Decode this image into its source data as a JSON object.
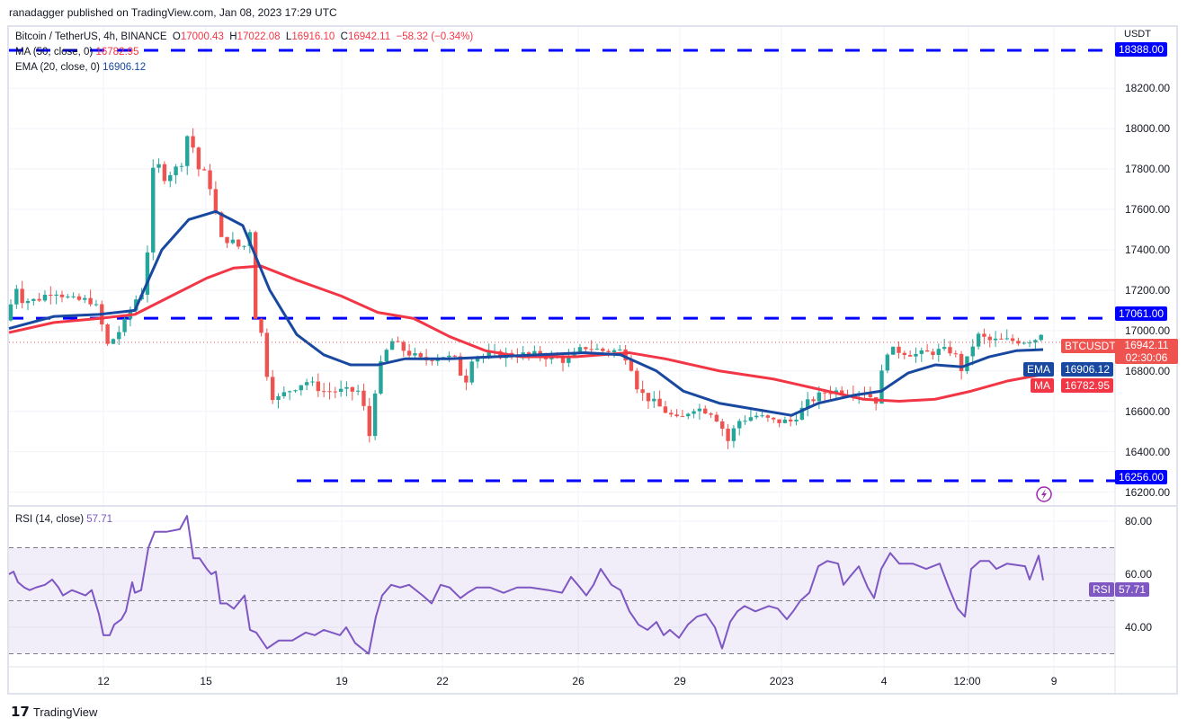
{
  "published": "ranadagger published on TradingView.com, Jan 08, 2023 17:29 UTC",
  "legend": {
    "symbol": "Bitcoin / TetherUS, 4h, BINANCE",
    "o_label": "O",
    "o": "17000.43",
    "h_label": "H",
    "h": "17022.08",
    "l_label": "L",
    "l": "16916.10",
    "c_label": "C",
    "c": "16942.11",
    "change": "−58.32 (−0.34%)",
    "ma_label": "MA (50, close, 0)",
    "ma_value": "16782.95",
    "ema_label": "EMA (20, close, 0)",
    "ema_value": "16906.12",
    "rsi_label": "RSI (14, close)",
    "rsi_value": "57.71"
  },
  "price_axis": {
    "currency": "USDT",
    "ticks": [
      "18200.00",
      "18000.00",
      "17800.00",
      "17600.00",
      "17400.00",
      "17200.00",
      "17000.00",
      "16800.00",
      "16600.00",
      "16400.00",
      "16200.00"
    ]
  },
  "rsi_axis": {
    "ticks": [
      "80.00",
      "60.00",
      "40.00"
    ]
  },
  "time_axis": [
    "12",
    "15",
    "19",
    "22",
    "26",
    "29",
    "2023",
    "4",
    "12:00",
    "9"
  ],
  "tags": {
    "level_high": "18388.00",
    "level_mid": "17061.00",
    "level_low": "16256.00",
    "symbol": "BTCUSDT",
    "price": "16942.11",
    "countdown": "02:30:06",
    "ema_label": "EMA",
    "ema": "16906.12",
    "ma_label": "MA",
    "ma": "16782.95",
    "rsi_label": "RSI",
    "rsi": "57.71"
  },
  "footer": "TradingView",
  "colors": {
    "up": "#26a69a",
    "down": "#ef5350",
    "ema": "#1848a0",
    "ma": "#f23645",
    "rsi": "#7e57c2",
    "level": "#0000ff"
  },
  "chart_data": {
    "type": "candlestick",
    "title": "Bitcoin / TetherUS, 4h, BINANCE",
    "ylim": [
      16150,
      18420
    ],
    "levels": [
      18388,
      17061,
      16256
    ],
    "close_path": [
      [
        10,
        17050
      ],
      [
        15,
        17250
      ],
      [
        25,
        17150
      ],
      [
        40,
        17150
      ],
      [
        60,
        17200
      ],
      [
        80,
        17150
      ],
      [
        100,
        17150
      ],
      [
        110,
        17100
      ],
      [
        118,
        16920
      ],
      [
        130,
        16980
      ],
      [
        140,
        17050
      ],
      [
        150,
        17150
      ],
      [
        160,
        17200
      ],
      [
        165,
        17450
      ],
      [
        172,
        17900
      ],
      [
        180,
        17750
      ],
      [
        195,
        17800
      ],
      [
        205,
        17850
      ],
      [
        212,
        18100
      ],
      [
        216,
        17800
      ],
      [
        225,
        17800
      ],
      [
        235,
        17700
      ],
      [
        245,
        17450
      ],
      [
        255,
        17450
      ],
      [
        270,
        17400
      ],
      [
        278,
        17500
      ],
      [
        282,
        17100
      ],
      [
        290,
        17000
      ],
      [
        298,
        16750
      ],
      [
        305,
        16650
      ],
      [
        320,
        16700
      ],
      [
        340,
        16750
      ],
      [
        360,
        16700
      ],
      [
        380,
        16700
      ],
      [
        400,
        16700
      ],
      [
        408,
        16550
      ],
      [
        412,
        16450
      ],
      [
        418,
        16750
      ],
      [
        425,
        16850
      ],
      [
        435,
        16950
      ],
      [
        450,
        16900
      ],
      [
        470,
        16850
      ],
      [
        490,
        16880
      ],
      [
        510,
        16850
      ],
      [
        515,
        16700
      ],
      [
        525,
        16870
      ],
      [
        550,
        16880
      ],
      [
        570,
        16880
      ],
      [
        600,
        16880
      ],
      [
        630,
        16850
      ],
      [
        650,
        16920
      ],
      [
        670,
        16900
      ],
      [
        690,
        16900
      ],
      [
        700,
        16850
      ],
      [
        710,
        16700
      ],
      [
        725,
        16650
      ],
      [
        740,
        16600
      ],
      [
        755,
        16550
      ],
      [
        770,
        16620
      ],
      [
        790,
        16600
      ],
      [
        800,
        16550
      ],
      [
        810,
        16450
      ],
      [
        820,
        16550
      ],
      [
        840,
        16580
      ],
      [
        860,
        16550
      ],
      [
        880,
        16550
      ],
      [
        900,
        16650
      ],
      [
        920,
        16700
      ],
      [
        940,
        16700
      ],
      [
        960,
        16700
      ],
      [
        975,
        16650
      ],
      [
        985,
        16900
      ],
      [
        1000,
        16900
      ],
      [
        1020,
        16880
      ],
      [
        1045,
        16900
      ],
      [
        1060,
        16900
      ],
      [
        1070,
        16800
      ],
      [
        1080,
        16900
      ],
      [
        1085,
        16980
      ],
      [
        1100,
        16950
      ],
      [
        1120,
        16950
      ],
      [
        1140,
        16950
      ],
      [
        1152,
        16960
      ],
      [
        1157,
        17000
      ],
      [
        1162,
        16942
      ]
    ],
    "ema_path": [
      [
        10,
        17010
      ],
      [
        60,
        17070
      ],
      [
        110,
        17080
      ],
      [
        150,
        17100
      ],
      [
        180,
        17400
      ],
      [
        210,
        17550
      ],
      [
        240,
        17590
      ],
      [
        270,
        17520
      ],
      [
        300,
        17200
      ],
      [
        330,
        16980
      ],
      [
        360,
        16880
      ],
      [
        390,
        16830
      ],
      [
        420,
        16830
      ],
      [
        450,
        16860
      ],
      [
        500,
        16860
      ],
      [
        550,
        16870
      ],
      [
        600,
        16880
      ],
      [
        650,
        16890
      ],
      [
        690,
        16880
      ],
      [
        730,
        16800
      ],
      [
        760,
        16700
      ],
      [
        800,
        16640
      ],
      [
        840,
        16610
      ],
      [
        880,
        16580
      ],
      [
        910,
        16640
      ],
      [
        950,
        16680
      ],
      [
        980,
        16700
      ],
      [
        1010,
        16790
      ],
      [
        1040,
        16830
      ],
      [
        1070,
        16820
      ],
      [
        1100,
        16870
      ],
      [
        1130,
        16900
      ],
      [
        1160,
        16906
      ]
    ],
    "ma_path": [
      [
        10,
        16990
      ],
      [
        60,
        17040
      ],
      [
        110,
        17060
      ],
      [
        150,
        17080
      ],
      [
        190,
        17170
      ],
      [
        230,
        17260
      ],
      [
        260,
        17310
      ],
      [
        290,
        17320
      ],
      [
        330,
        17250
      ],
      [
        380,
        17170
      ],
      [
        420,
        17090
      ],
      [
        460,
        17060
      ],
      [
        500,
        16970
      ],
      [
        540,
        16900
      ],
      [
        580,
        16870
      ],
      [
        640,
        16870
      ],
      [
        700,
        16890
      ],
      [
        740,
        16860
      ],
      [
        800,
        16800
      ],
      [
        860,
        16760
      ],
      [
        920,
        16700
      ],
      [
        960,
        16660
      ],
      [
        1000,
        16650
      ],
      [
        1040,
        16660
      ],
      [
        1080,
        16700
      ],
      [
        1120,
        16750
      ],
      [
        1160,
        16783
      ]
    ],
    "rsi": {
      "ylim": [
        25,
        85
      ],
      "bands": [
        30,
        70
      ],
      "path": [
        [
          10,
          60
        ],
        [
          15,
          61
        ],
        [
          20,
          57
        ],
        [
          27,
          55
        ],
        [
          33,
          54
        ],
        [
          40,
          55
        ],
        [
          50,
          56
        ],
        [
          58,
          58
        ],
        [
          65,
          55
        ],
        [
          70,
          52
        ],
        [
          80,
          54
        ],
        [
          95,
          52
        ],
        [
          102,
          54
        ],
        [
          110,
          45
        ],
        [
          115,
          37
        ],
        [
          122,
          37
        ],
        [
          127,
          41
        ],
        [
          135,
          43
        ],
        [
          140,
          46
        ],
        [
          147,
          57
        ],
        [
          150,
          53
        ],
        [
          157,
          54
        ],
        [
          165,
          70
        ],
        [
          172,
          76
        ],
        [
          178,
          76
        ],
        [
          185,
          76
        ],
        [
          200,
          77
        ],
        [
          208,
          82
        ],
        [
          215,
          66
        ],
        [
          222,
          66
        ],
        [
          230,
          62
        ],
        [
          235,
          60
        ],
        [
          240,
          61
        ],
        [
          245,
          49
        ],
        [
          252,
          49
        ],
        [
          260,
          47
        ],
        [
          272,
          52
        ],
        [
          278,
          39
        ],
        [
          285,
          38
        ],
        [
          291,
          35
        ],
        [
          297,
          32
        ],
        [
          310,
          35
        ],
        [
          325,
          35
        ],
        [
          340,
          38
        ],
        [
          350,
          37
        ],
        [
          360,
          39
        ],
        [
          378,
          37
        ],
        [
          385,
          40
        ],
        [
          395,
          34
        ],
        [
          410,
          30
        ],
        [
          418,
          44
        ],
        [
          425,
          52
        ],
        [
          435,
          56
        ],
        [
          445,
          55
        ],
        [
          455,
          56
        ],
        [
          470,
          52
        ],
        [
          480,
          49
        ],
        [
          490,
          56
        ],
        [
          500,
          55
        ],
        [
          512,
          51
        ],
        [
          520,
          53
        ],
        [
          530,
          55
        ],
        [
          545,
          55
        ],
        [
          560,
          53
        ],
        [
          575,
          55
        ],
        [
          590,
          55
        ],
        [
          610,
          54
        ],
        [
          625,
          53
        ],
        [
          635,
          59
        ],
        [
          645,
          55
        ],
        [
          652,
          52
        ],
        [
          660,
          56
        ],
        [
          668,
          62
        ],
        [
          680,
          56
        ],
        [
          690,
          54
        ],
        [
          700,
          46
        ],
        [
          710,
          41
        ],
        [
          720,
          39
        ],
        [
          730,
          42
        ],
        [
          738,
          37
        ],
        [
          745,
          39
        ],
        [
          755,
          36
        ],
        [
          765,
          41
        ],
        [
          775,
          44
        ],
        [
          785,
          45
        ],
        [
          795,
          40
        ],
        [
          803,
          32
        ],
        [
          812,
          42
        ],
        [
          820,
          46
        ],
        [
          828,
          48
        ],
        [
          840,
          46
        ],
        [
          855,
          48
        ],
        [
          865,
          47
        ],
        [
          875,
          43
        ],
        [
          882,
          46
        ],
        [
          890,
          50
        ],
        [
          900,
          53
        ],
        [
          910,
          63
        ],
        [
          920,
          65
        ],
        [
          932,
          64
        ],
        [
          938,
          56
        ],
        [
          945,
          59
        ],
        [
          955,
          63
        ],
        [
          965,
          55
        ],
        [
          972,
          51
        ],
        [
          980,
          62
        ],
        [
          990,
          68
        ],
        [
          1000,
          64
        ],
        [
          1015,
          64
        ],
        [
          1030,
          62
        ],
        [
          1045,
          64
        ],
        [
          1055,
          55
        ],
        [
          1065,
          47
        ],
        [
          1073,
          44
        ],
        [
          1080,
          62
        ],
        [
          1090,
          65
        ],
        [
          1100,
          65
        ],
        [
          1108,
          62
        ],
        [
          1120,
          64
        ],
        [
          1140,
          63
        ],
        [
          1145,
          58
        ],
        [
          1155,
          67
        ],
        [
          1160,
          57.71
        ]
      ]
    }
  }
}
